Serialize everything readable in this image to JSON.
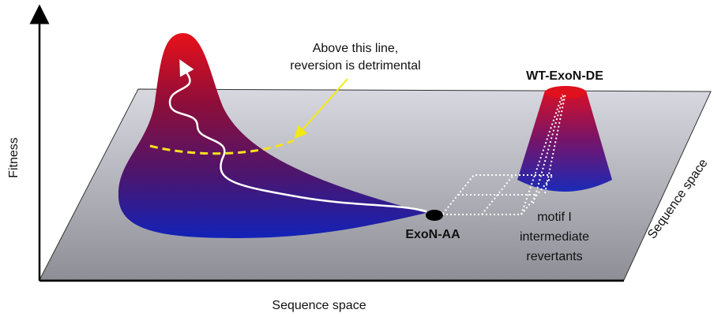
{
  "axes": {
    "y_label": "Fitness",
    "x_label": "Sequence space",
    "z_label": "Sequence space"
  },
  "annotation": {
    "lines": [
      "Above this line,",
      "reversion is detrimental"
    ]
  },
  "peaks": {
    "wild_type": "WT-ExoN-DE",
    "mutant": "ExoN-AA"
  },
  "intermediates": {
    "lines": [
      "motif I",
      "intermediate",
      "revertants"
    ]
  }
}
